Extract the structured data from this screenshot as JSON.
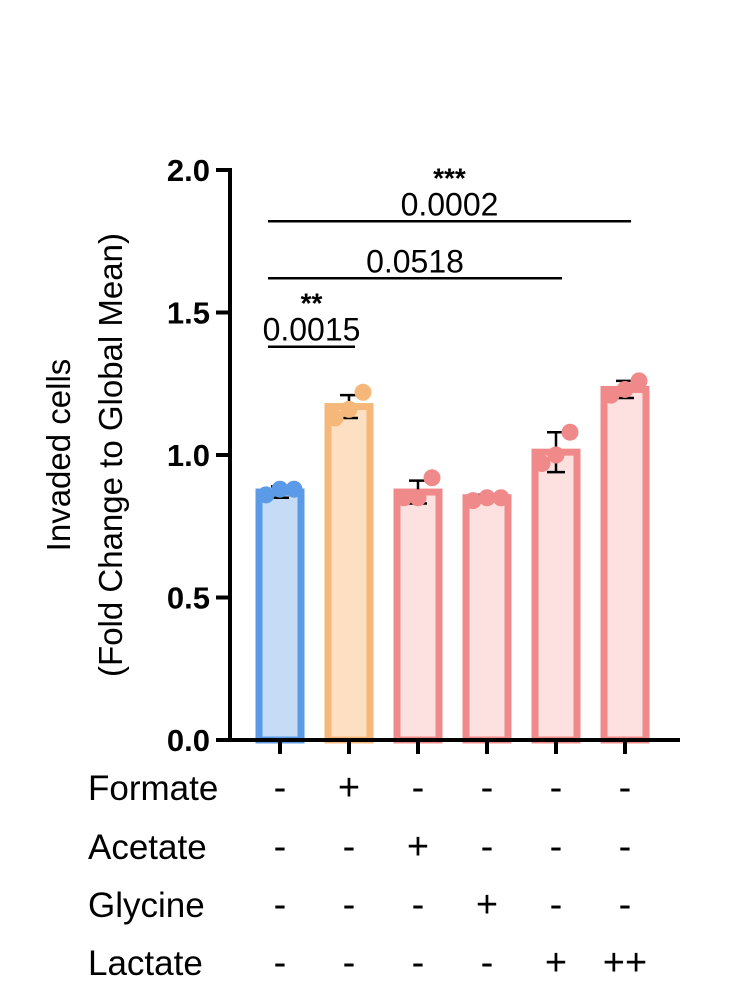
{
  "chart_data": {
    "type": "bar",
    "ylabel_line1": "Invaded cells",
    "ylabel_line2": "(Fold Change to Global Mean)",
    "ylim": [
      0,
      2.0
    ],
    "yticks": [
      "0.0",
      "0.5",
      "1.0",
      "1.5",
      "2.0"
    ],
    "grid": false,
    "bars": [
      {
        "value": 0.87,
        "err_low": 0.85,
        "err_high": 0.89,
        "points": [
          0.86,
          0.88,
          0.88
        ],
        "fill": "#c6dcf6",
        "stroke": "#5b9ae6"
      },
      {
        "value": 1.17,
        "err_low": 1.13,
        "err_high": 1.21,
        "points": [
          1.13,
          1.16,
          1.22
        ],
        "fill": "#fde0c2",
        "stroke": "#f5b87a"
      },
      {
        "value": 0.87,
        "err_low": 0.83,
        "err_high": 0.91,
        "points": [
          0.85,
          0.85,
          0.92
        ],
        "fill": "#fde0e0",
        "stroke": "#f08a8a"
      },
      {
        "value": 0.85,
        "err_low": 0.84,
        "err_high": 0.86,
        "points": [
          0.84,
          0.85,
          0.85
        ],
        "fill": "#fde0e0",
        "stroke": "#f08a8a"
      },
      {
        "value": 1.01,
        "err_low": 0.94,
        "err_high": 1.08,
        "points": [
          0.97,
          1.0,
          1.08
        ],
        "fill": "#fde0e0",
        "stroke": "#f08a8a"
      },
      {
        "value": 1.23,
        "err_low": 1.2,
        "err_high": 1.26,
        "points": [
          1.21,
          1.23,
          1.26
        ],
        "fill": "#fde0e0",
        "stroke": "#f08a8a"
      }
    ],
    "conditions": [
      {
        "name": "Formate",
        "symbols": [
          "-",
          "+",
          "-",
          "-",
          "-",
          "-"
        ]
      },
      {
        "name": "Acetate",
        "symbols": [
          "-",
          "-",
          "+",
          "-",
          "-",
          "-"
        ]
      },
      {
        "name": "Glycine",
        "symbols": [
          "-",
          "-",
          "-",
          "+",
          "-",
          "-"
        ]
      },
      {
        "name": "Lactate",
        "symbols": [
          "-",
          "-",
          "-",
          "-",
          "+",
          "++"
        ]
      }
    ],
    "comparisons": [
      {
        "from": 0,
        "to": 1,
        "p": "0.0015",
        "stars": "**",
        "y": 1.38
      },
      {
        "from": 0,
        "to": 4,
        "p": "0.0518",
        "stars": "",
        "y": 1.62
      },
      {
        "from": 0,
        "to": 5,
        "p": "0.0002",
        "stars": "***",
        "y": 1.82
      }
    ]
  }
}
